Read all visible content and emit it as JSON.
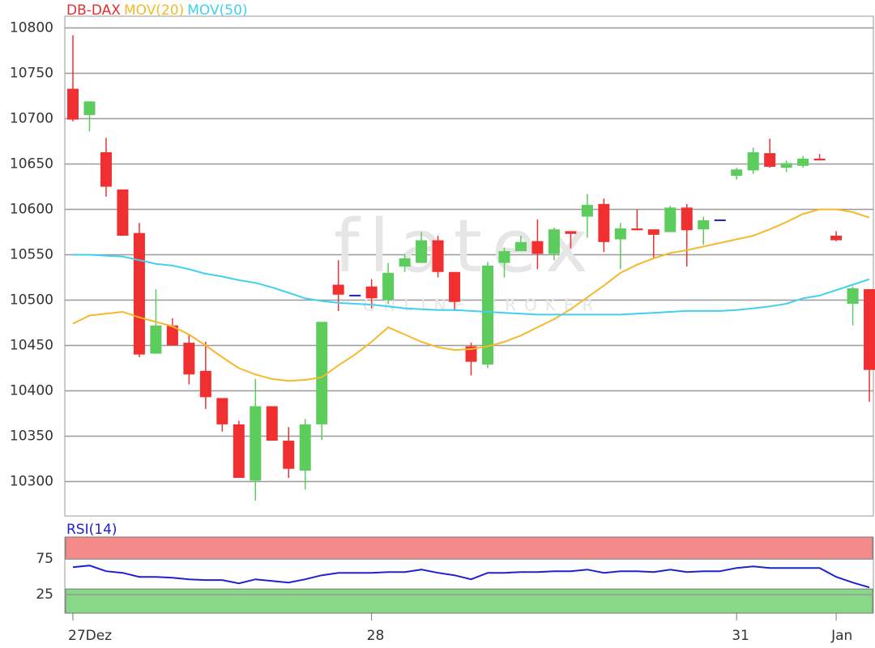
{
  "chart_data": [
    {
      "type": "candlestick",
      "watermark": "flatex",
      "watermark_sub": "ONLINE BROKER",
      "categories": [
        "27Dez",
        null,
        null,
        null,
        null,
        null,
        null,
        null,
        null,
        null,
        null,
        null,
        null,
        null,
        null,
        null,
        null,
        null,
        "28",
        null,
        null,
        null,
        null,
        null,
        null,
        null,
        null,
        null,
        null,
        null,
        null,
        null,
        null,
        null,
        null,
        null,
        null,
        null,
        null,
        null,
        "31",
        null,
        null,
        null,
        null,
        null,
        "Jan",
        null,
        null
      ],
      "series": [
        {
          "name": "DB-DAX",
          "color": "#e03030",
          "up_color": "#5ccc5c",
          "down_color": "#f03030",
          "flat_color": "#2020c0",
          "open": [
            10733,
            10704,
            10663,
            10622,
            10574,
            10441,
            10472,
            10453,
            10422,
            10392,
            10363,
            10301,
            10383,
            10345,
            10312,
            10363,
            10517,
            10505,
            10515,
            10500,
            10537,
            10541,
            10566,
            10531,
            10449,
            10429,
            10541,
            10554,
            10565,
            10551,
            10576,
            10592,
            10606,
            10567,
            10579,
            10578,
            10575,
            10602,
            10578,
            10588,
            10637,
            10643,
            10662,
            10646,
            10648,
            10656,
            10571,
            10496,
            10512
          ],
          "high": [
            10792,
            10719,
            10679,
            10622,
            10585,
            10512,
            10480,
            10463,
            10454,
            10392,
            10367,
            10413,
            10383,
            10360,
            10369,
            10476,
            10544,
            10505,
            10523,
            10541,
            10551,
            10575,
            10571,
            10531,
            10453,
            10542,
            10558,
            10571,
            10589,
            10580,
            10576,
            10617,
            10612,
            10585,
            10600,
            10578,
            10604,
            10606,
            10592,
            10588,
            10646,
            10668,
            10678,
            10654,
            10659,
            10661,
            10576,
            10515,
            10512
          ],
          "low": [
            10697,
            10686,
            10614,
            10571,
            10437,
            10441,
            10450,
            10407,
            10380,
            10355,
            10304,
            10279,
            10345,
            10304,
            10291,
            10346,
            10488,
            10505,
            10491,
            10496,
            10531,
            10541,
            10525,
            10488,
            10417,
            10425,
            10525,
            10554,
            10534,
            10544,
            10557,
            10569,
            10553,
            10534,
            10577,
            10546,
            10575,
            10537,
            10561,
            10588,
            10633,
            10639,
            10646,
            10641,
            10646,
            10654,
            10565,
            10472,
            10388
          ],
          "close": [
            10699,
            10719,
            10625,
            10571,
            10440,
            10472,
            10450,
            10418,
            10393,
            10363,
            10304,
            10383,
            10345,
            10314,
            10363,
            10476,
            10506,
            10505,
            10502,
            10530,
            10546,
            10566,
            10531,
            10498,
            10432,
            10538,
            10554,
            10564,
            10551,
            10578,
            10573,
            10605,
            10564,
            10579,
            10577,
            10572,
            10602,
            10577,
            10588,
            10588,
            10644,
            10663,
            10647,
            10651,
            10656,
            10654,
            10566,
            10513,
            10423
          ]
        },
        {
          "name": "MOV(20)",
          "color": "#f5b82e",
          "values": [
            10474,
            10483,
            10485,
            10487,
            10481,
            10476,
            10471,
            10462,
            10450,
            10437,
            10425,
            10418,
            10413,
            10411,
            10412,
            10415,
            10428,
            10440,
            10454,
            10470,
            10462,
            10454,
            10448,
            10445,
            10446,
            10449,
            10454,
            10461,
            10470,
            10479,
            10490,
            10503,
            10516,
            10530,
            10539,
            10546,
            10552,
            10555,
            10559,
            10563,
            10567,
            10571,
            10578,
            10586,
            10595,
            10600,
            10600,
            10597,
            10591
          ]
        },
        {
          "name": "MOV(50)",
          "color": "#40d0f0",
          "values": [
            10550,
            10550,
            10549,
            10548,
            10544,
            10540,
            10538,
            10534,
            10529,
            10526,
            10522,
            10519,
            10514,
            10508,
            10502,
            10499,
            10497,
            10496,
            10495,
            10493,
            10491,
            10490,
            10489,
            10489,
            10488,
            10487,
            10486,
            10485,
            10484,
            10484,
            10484,
            10484,
            10484,
            10484,
            10485,
            10486,
            10487,
            10488,
            10488,
            10488,
            10489,
            10491,
            10493,
            10496,
            10502,
            10505,
            10511,
            10517,
            10523
          ]
        }
      ],
      "ylim": [
        10262,
        10813
      ],
      "yticks": [
        10300,
        10350,
        10400,
        10450,
        10500,
        10550,
        10600,
        10650,
        10700,
        10750,
        10800
      ],
      "grid": true
    },
    {
      "type": "line",
      "series": [
        {
          "name": "RSI(14)",
          "color": "#2020d0",
          "values": [
            63.6,
            65.9,
            58,
            55.7,
            50,
            50,
            48.9,
            46.6,
            45.5,
            45.5,
            40.9,
            46.6,
            44.3,
            42,
            46.6,
            52.3,
            55.7,
            55.7,
            55.7,
            56.8,
            56.8,
            60.2,
            55.7,
            52.3,
            46.6,
            55.7,
            55.7,
            56.8,
            56.8,
            58,
            58,
            60.2,
            55.7,
            58,
            58,
            56.8,
            60.2,
            56.8,
            58,
            58,
            62.5,
            64.8,
            62.5,
            62.5,
            62.5,
            62.5,
            50,
            42,
            35.2
          ]
        }
      ],
      "bands": [
        {
          "from": 75,
          "to": 106,
          "color": "#f58a8a"
        },
        {
          "from": -1,
          "to": 33,
          "color": "#88d888"
        }
      ],
      "ylim": [
        -1,
        106
      ],
      "yticks": [
        25,
        75
      ],
      "grid": true
    }
  ]
}
